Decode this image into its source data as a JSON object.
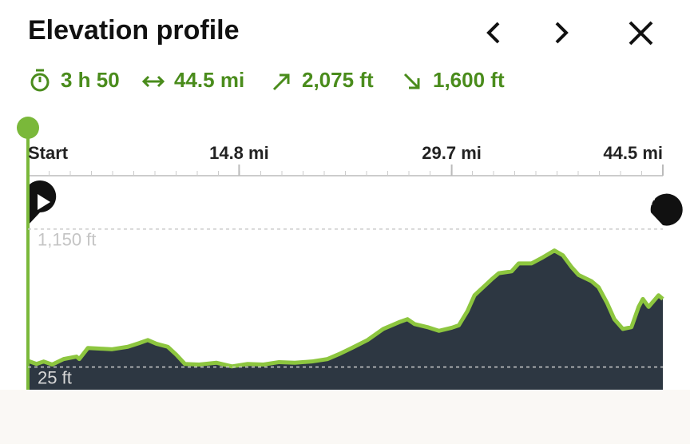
{
  "header": {
    "title": "Elevation profile"
  },
  "stats": {
    "duration": "3 h 50",
    "distance": "44.5 mi",
    "ascent": "2,075 ft",
    "descent": "1,600 ft"
  },
  "chart_data": {
    "type": "area",
    "x": [
      0,
      0.6,
      1.1,
      1.7,
      2.5,
      3.4,
      3.6,
      4.2,
      5.0,
      5.9,
      7.0,
      7.8,
      8.4,
      9.0,
      9.8,
      10.4,
      11.0,
      12.0,
      13.2,
      14.3,
      15.4,
      16.5,
      17.6,
      18.7,
      19.9,
      21.0,
      21.8,
      22.7,
      23.8,
      24.9,
      26.0,
      26.6,
      27.1,
      28.0,
      28.8,
      29.7,
      30.2,
      30.8,
      31.3,
      31.9,
      32.5,
      33.0,
      33.9,
      34.4,
      35.3,
      36.1,
      36.9,
      37.5,
      38.1,
      38.6,
      39.5,
      40.0,
      40.6,
      41.1,
      41.7,
      42.3,
      42.8,
      43.1,
      43.5,
      44.2,
      44.5
    ],
    "values": [
      75,
      50,
      70,
      45,
      90,
      110,
      90,
      180,
      175,
      170,
      190,
      220,
      245,
      215,
      190,
      125,
      50,
      45,
      60,
      30,
      50,
      45,
      65,
      60,
      70,
      90,
      130,
      180,
      245,
      335,
      390,
      415,
      375,
      350,
      320,
      345,
      365,
      480,
      610,
      675,
      740,
      790,
      805,
      870,
      870,
      920,
      975,
      935,
      840,
      775,
      725,
      675,
      545,
      415,
      335,
      350,
      515,
      580,
      515,
      610,
      580
    ],
    "color": "#8dc63f",
    "fill": "#2d3742",
    "xlim": [
      0,
      44.5
    ],
    "xticks": [
      {
        "value": 0,
        "label": "Start"
      },
      {
        "value": 14.8,
        "label": "14.8 mi"
      },
      {
        "value": 29.7,
        "label": "29.7 mi"
      },
      {
        "value": 44.5,
        "label": "44.5 mi"
      }
    ],
    "ylim": [
      -160,
      1520
    ],
    "yticks": [
      {
        "value": 25,
        "label": "25 ft"
      },
      {
        "value": 1150,
        "label": "1,150 ft"
      }
    ],
    "grid": true
  }
}
